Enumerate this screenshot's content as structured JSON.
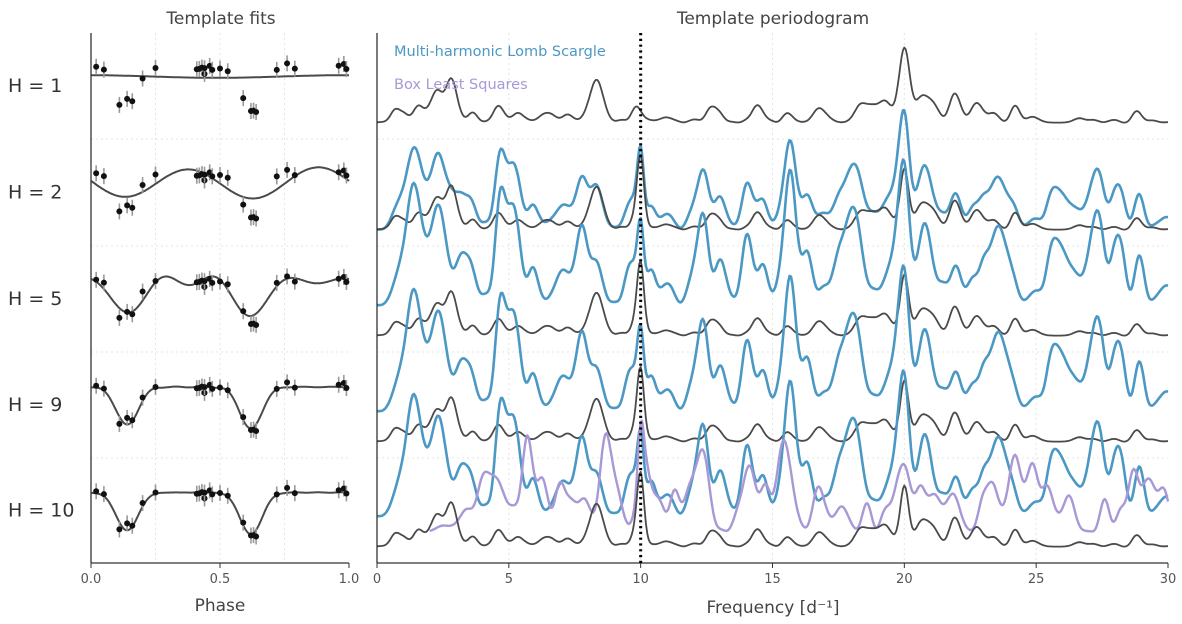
{
  "chart_data": [
    {
      "type": "scatter",
      "title": "Template fits",
      "xlabel": "Phase",
      "xlim": [
        0.0,
        1.0
      ],
      "xticks": [
        "0.0",
        "0.5",
        "1.0"
      ],
      "grid": true,
      "colors": {
        "points": "#111111",
        "errorbars": "#999999",
        "model": "#4a4a4a"
      },
      "phases": [
        0.02,
        0.05,
        0.11,
        0.14,
        0.16,
        0.2,
        0.25,
        0.41,
        0.42,
        0.43,
        0.44,
        0.44,
        0.46,
        0.47,
        0.5,
        0.53,
        0.59,
        0.62,
        0.63,
        0.64,
        0.72,
        0.76,
        0.79,
        0.96,
        0.98,
        0.99
      ],
      "rows": [
        {
          "label": "H = 1",
          "harmonics": 1
        },
        {
          "label": "H = 2",
          "harmonics": 2
        },
        {
          "label": "H = 5",
          "harmonics": 5
        },
        {
          "label": "H = 9",
          "harmonics": 9
        },
        {
          "label": "H = 10",
          "harmonics": 10
        }
      ]
    },
    {
      "type": "line",
      "title": "Template periodogram",
      "xlabel": "Frequency [d⁻¹]",
      "xlim": [
        0,
        30
      ],
      "xticks": [
        "0",
        "5",
        "10",
        "15",
        "20",
        "25",
        "30"
      ],
      "grid": true,
      "annotations": [
        {
          "type": "vertical-dotted-line",
          "x": 10
        }
      ],
      "legend": {
        "placement": "top-left"
      },
      "series": [
        {
          "name": "Multi-harmonic Lomb Scargle",
          "color": "#4b98c4",
          "rows": [
            "H = 2",
            "H = 5",
            "H = 9",
            "H = 10"
          ]
        },
        {
          "name": "Box Least Squares",
          "color": "#a898d6",
          "rows": [
            "H = 10"
          ]
        },
        {
          "name": "",
          "color": "#4a4a4a",
          "rows": [
            "H = 1",
            "H = 2",
            "H = 5",
            "H = 9",
            "H = 10"
          ]
        }
      ],
      "peaks": {
        "template": [
          10,
          20
        ],
        "template_H1": [
          20
        ]
      }
    }
  ]
}
